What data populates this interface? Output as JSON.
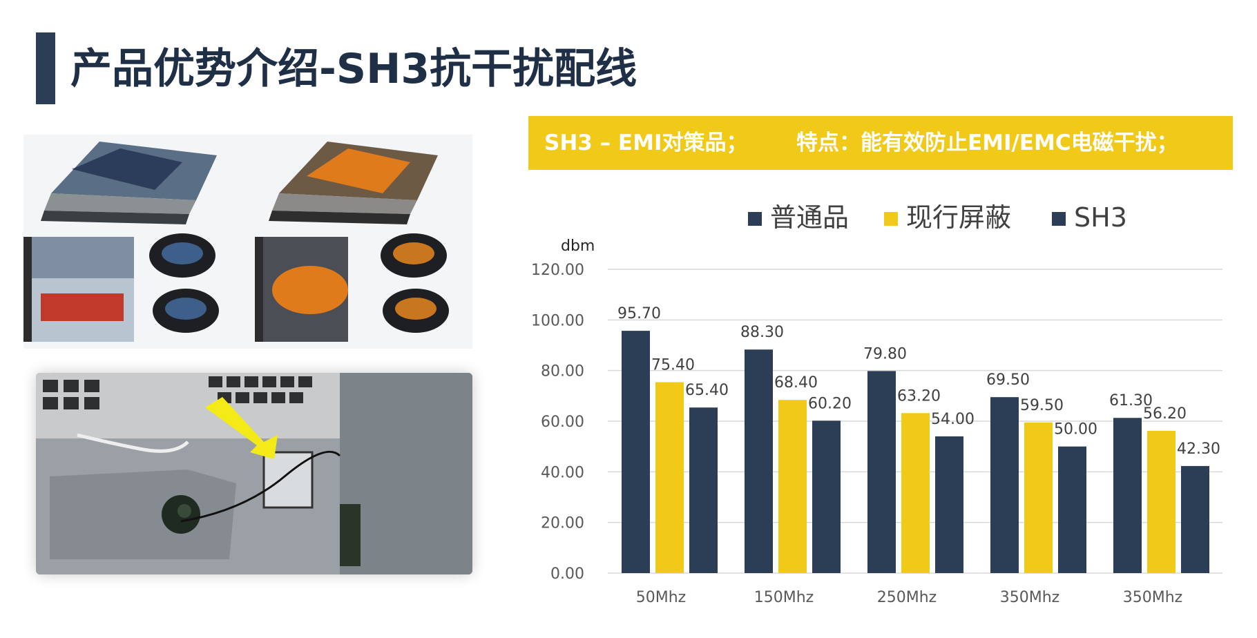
{
  "title": "产品优势介绍-SH3抗干扰配线",
  "banner": {
    "left": "SH3 – EMI对策品；",
    "right": "特点：能有效防止EMI/EMC电磁干扰；"
  },
  "images": {
    "consoles": "ps4-console-skins-photo",
    "board": "shielded-cable-on-board-photo"
  },
  "colors": {
    "title_bar": "#2c3e55",
    "banner": "#f1c918",
    "series_dark": "#2c3e55",
    "series_yellow": "#f1c918"
  },
  "chart_data": {
    "type": "bar",
    "categories": [
      "50Mhz",
      "150Mhz",
      "250Mhz",
      "350Mhz",
      "350Mhz"
    ],
    "series": [
      {
        "name": "普通品",
        "values": [
          95.7,
          88.3,
          79.8,
          69.5,
          61.3
        ]
      },
      {
        "name": "现行屏蔽",
        "values": [
          75.4,
          68.4,
          63.2,
          59.5,
          56.2
        ]
      },
      {
        "name": "SH3",
        "values": [
          65.4,
          60.2,
          54.0,
          50.0,
          42.3
        ]
      }
    ],
    "ylabel": "dbm",
    "ylim": [
      0,
      120
    ],
    "yticks": [
      0,
      20,
      40,
      60,
      80,
      100,
      120
    ],
    "value_format_decimals": 2,
    "grid": true,
    "legend_position": "top"
  }
}
